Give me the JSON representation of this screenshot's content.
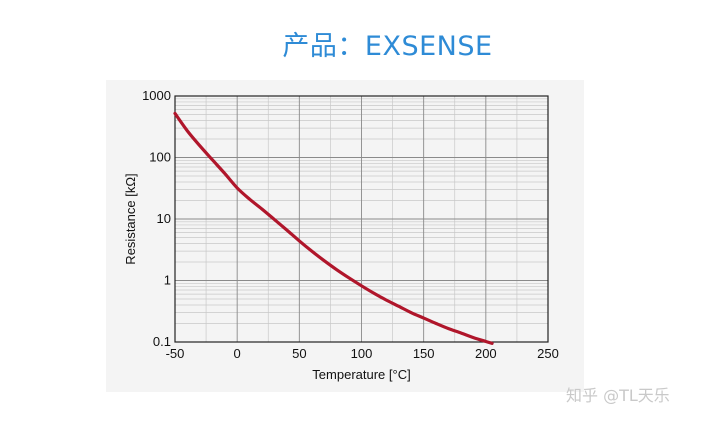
{
  "header": {
    "title": "产品：EXSENSE"
  },
  "watermark": {
    "text": "知乎 @TL天乐"
  },
  "chart_data": {
    "type": "line",
    "title": "",
    "xlabel": "Temperature [°C]",
    "ylabel": "Resistance [kΩ]",
    "xlim": [
      -50,
      250
    ],
    "ylim": [
      0.1,
      1000
    ],
    "yscale": "log",
    "grid": true,
    "x_ticks": [
      -50,
      0,
      50,
      100,
      150,
      200,
      250
    ],
    "x_tick_labels": [
      "-50",
      "0",
      "50",
      "100",
      "150",
      "200",
      "250"
    ],
    "y_ticks": [
      0.1,
      1,
      10,
      100,
      1000
    ],
    "y_tick_labels": [
      "0.1",
      "1",
      "10",
      "100",
      "1000"
    ],
    "series": [
      {
        "name": "",
        "color": "#b0162b",
        "x": [
          -50,
          -40,
          -30,
          -20,
          -10,
          0,
          10,
          20,
          30,
          40,
          50,
          60,
          70,
          80,
          90,
          100,
          110,
          120,
          130,
          140,
          150,
          160,
          170,
          180,
          190,
          200,
          205
        ],
        "y": [
          520,
          270,
          155,
          92,
          55,
          32,
          21,
          14.5,
          9.8,
          6.6,
          4.4,
          3.0,
          2.1,
          1.5,
          1.1,
          0.82,
          0.62,
          0.48,
          0.38,
          0.3,
          0.245,
          0.2,
          0.165,
          0.14,
          0.118,
          0.102,
          0.095
        ]
      }
    ]
  }
}
